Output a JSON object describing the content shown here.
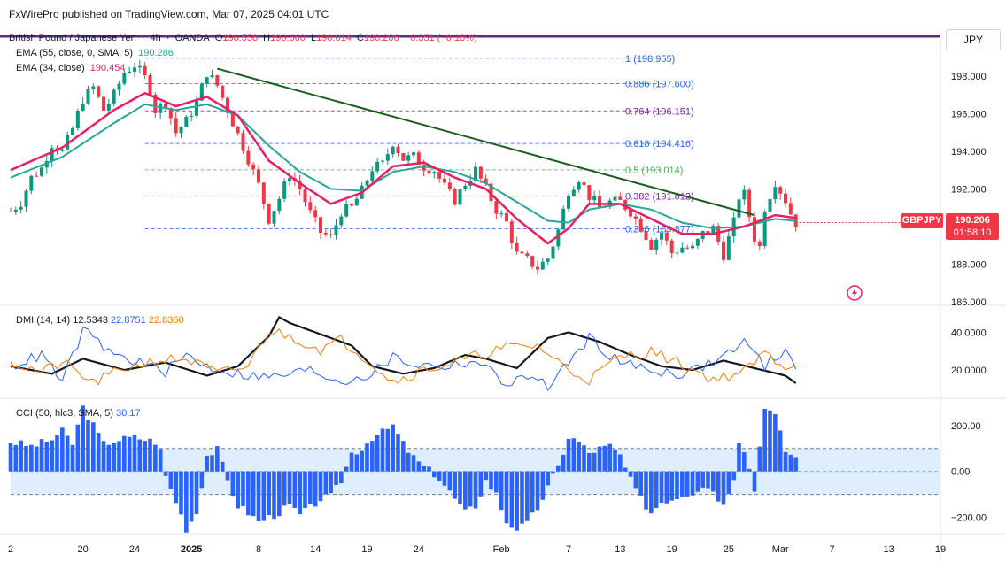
{
  "header": {
    "publisher": "FxWirePro published on TradingView.com, Mar 07, 2025 04:01 UTC"
  },
  "symbol": {
    "name": "British Pound / Japanese Yen",
    "interval": "4h",
    "exchange": "OANDA",
    "open_label": "O",
    "open": "190.558",
    "high_label": "H",
    "high": "190.660",
    "low_label": "L",
    "low": "190.014",
    "close_label": "C",
    "close": "190.206",
    "change": "−0.351 (−0.18%)",
    "ticker_tag": "GBPJPY",
    "last_price": "190.206",
    "countdown": "01:58:10",
    "currency": "JPY"
  },
  "indicators": {
    "ema55": {
      "label": "EMA (55, close, 0, SMA, 5)",
      "value": "190.286"
    },
    "ema34": {
      "label": "EMA (34, close)",
      "value": "190.454"
    },
    "dmi": {
      "label": "DMI (14, 14)",
      "adx": "12.5343",
      "plus_di": "22.8751",
      "minus_di": "22.8360"
    },
    "cci": {
      "label": "CCI (50, hlc3, SMA, 5)",
      "value": "30.17"
    }
  },
  "colors": {
    "up": "#089981",
    "down": "#f23645",
    "ema34": "#e91e63",
    "ema55": "#26a69a",
    "trend": "#1b5e20",
    "fib": "#2962ff",
    "plus_di": "#2962ff",
    "minus_di": "#f57c00",
    "adx": "#131722",
    "cci": "#2962ff",
    "bg_band": "#dfeefc"
  },
  "fib_levels": [
    {
      "ratio": "1",
      "value": 198.955,
      "label": "1 (198.955)"
    },
    {
      "ratio": "0.886",
      "value": 197.6,
      "label": "0.886 (197.600)"
    },
    {
      "ratio": "0.764",
      "value": 196.151,
      "label": "0.764 (196.151)"
    },
    {
      "ratio": "0.618",
      "value": 194.416,
      "label": "0.618 (194.416)"
    },
    {
      "ratio": "0.5",
      "value": 193.014,
      "label": "0.5 (193.014)"
    },
    {
      "ratio": "0.382",
      "value": 191.612,
      "label": "0.382 (191.612)"
    },
    {
      "ratio": "0.236",
      "value": 189.877,
      "label": "0.236 (189.877)"
    }
  ],
  "chart_data": [
    {
      "type": "candlestick",
      "ylim": [
        185.8,
        200.5
      ],
      "y_ticks": [
        "198.000",
        "196.000",
        "194.000",
        "192.000",
        "190.000",
        "188.000",
        "186.000"
      ],
      "x_ticks": [
        "2",
        "20",
        "24",
        "2025",
        "8",
        "14",
        "19",
        "24",
        "Feb",
        "7",
        "13",
        "19",
        "25",
        "Mar",
        "7",
        "13",
        "19"
      ],
      "close_path": [
        [
          0,
          190.8
        ],
        [
          2,
          191.3
        ],
        [
          4,
          192.6
        ],
        [
          6,
          193.1
        ],
        [
          8,
          194.4
        ],
        [
          10,
          194.0
        ],
        [
          12,
          195.2
        ],
        [
          14,
          196.8
        ],
        [
          16,
          197.4
        ],
        [
          18,
          196.2
        ],
        [
          20,
          197.0
        ],
        [
          22,
          198.2
        ],
        [
          24,
          198.6
        ],
        [
          26,
          197.9
        ],
        [
          27,
          197.3
        ],
        [
          28,
          196.2
        ],
        [
          30,
          196.6
        ],
        [
          32,
          195.0
        ],
        [
          34,
          195.6
        ],
        [
          36,
          196.6
        ],
        [
          38,
          198.2
        ],
        [
          40,
          197.5
        ],
        [
          42,
          196.2
        ],
        [
          44,
          194.9
        ],
        [
          46,
          193.6
        ],
        [
          48,
          192.2
        ],
        [
          50,
          190.4
        ],
        [
          52,
          191.5
        ],
        [
          54,
          192.8
        ],
        [
          56,
          192.0
        ],
        [
          58,
          190.7
        ],
        [
          60,
          189.7
        ],
        [
          62,
          189.4
        ],
        [
          64,
          190.8
        ],
        [
          66,
          191.0
        ],
        [
          68,
          191.9
        ],
        [
          70,
          193.1
        ],
        [
          72,
          193.3
        ],
        [
          74,
          194.5
        ],
        [
          76,
          193.6
        ],
        [
          78,
          193.7
        ],
        [
          80,
          193.2
        ],
        [
          82,
          193.0
        ],
        [
          84,
          192.1
        ],
        [
          86,
          191.4
        ],
        [
          88,
          192.3
        ],
        [
          90,
          193.0
        ],
        [
          92,
          192.0
        ],
        [
          94,
          190.9
        ],
        [
          96,
          190.2
        ],
        [
          98,
          188.5
        ],
        [
          100,
          188.2
        ],
        [
          102,
          187.8
        ],
        [
          104,
          188.3
        ],
        [
          106,
          189.8
        ],
        [
          108,
          191.9
        ],
        [
          110,
          192.6
        ],
        [
          112,
          191.6
        ],
        [
          114,
          191.0
        ],
        [
          116,
          191.3
        ],
        [
          118,
          191.3
        ],
        [
          120,
          190.8
        ],
        [
          122,
          190.0
        ],
        [
          124,
          189.0
        ],
        [
          126,
          189.7
        ],
        [
          128,
          188.6
        ],
        [
          130,
          188.9
        ],
        [
          132,
          188.8
        ],
        [
          134,
          189.6
        ],
        [
          136,
          189.9
        ],
        [
          138,
          188.5
        ],
        [
          140,
          190.2
        ],
        [
          141,
          191.6
        ],
        [
          142,
          191.7
        ],
        [
          144,
          189.4
        ],
        [
          145,
          188.9
        ],
        [
          146,
          191.0
        ],
        [
          148,
          192.4
        ],
        [
          150,
          191.4
        ],
        [
          151,
          190.7
        ],
        [
          152,
          190.21
        ]
      ],
      "ema34_path": [
        [
          0,
          193.0
        ],
        [
          10,
          194.2
        ],
        [
          20,
          196.2
        ],
        [
          26,
          197.1
        ],
        [
          32,
          196.4
        ],
        [
          38,
          196.9
        ],
        [
          44,
          195.9
        ],
        [
          50,
          193.5
        ],
        [
          56,
          192.3
        ],
        [
          62,
          191.2
        ],
        [
          68,
          191.8
        ],
        [
          74,
          193.2
        ],
        [
          80,
          193.4
        ],
        [
          86,
          192.6
        ],
        [
          92,
          192.0
        ],
        [
          98,
          190.4
        ],
        [
          104,
          189.1
        ],
        [
          108,
          189.9
        ],
        [
          112,
          191.2
        ],
        [
          118,
          191.2
        ],
        [
          124,
          190.4
        ],
        [
          130,
          189.6
        ],
        [
          136,
          189.6
        ],
        [
          142,
          190.0
        ],
        [
          148,
          190.6
        ],
        [
          152,
          190.45
        ]
      ],
      "ema55_path": [
        [
          0,
          192.6
        ],
        [
          10,
          193.7
        ],
        [
          20,
          195.5
        ],
        [
          26,
          196.5
        ],
        [
          32,
          196.2
        ],
        [
          38,
          196.5
        ],
        [
          44,
          195.9
        ],
        [
          50,
          194.3
        ],
        [
          56,
          192.9
        ],
        [
          62,
          192.0
        ],
        [
          68,
          191.9
        ],
        [
          74,
          192.9
        ],
        [
          80,
          193.2
        ],
        [
          86,
          192.9
        ],
        [
          92,
          192.3
        ],
        [
          98,
          191.3
        ],
        [
          104,
          190.3
        ],
        [
          108,
          190.2
        ],
        [
          112,
          190.9
        ],
        [
          118,
          191.2
        ],
        [
          124,
          190.9
        ],
        [
          130,
          190.2
        ],
        [
          136,
          189.9
        ],
        [
          142,
          190.0
        ],
        [
          148,
          190.4
        ],
        [
          152,
          190.29
        ]
      ],
      "trendline": [
        [
          40,
          198.4
        ],
        [
          144,
          190.6
        ]
      ]
    },
    {
      "type": "line",
      "ylim": [
        5,
        52
      ],
      "y_ticks": [
        "40.0000",
        "20.0000"
      ],
      "series": [
        {
          "name": "ADX",
          "values": [
            [
              0,
              22
            ],
            [
              8,
              18
            ],
            [
              14,
              26
            ],
            [
              22,
              20
            ],
            [
              30,
              24
            ],
            [
              38,
              17
            ],
            [
              44,
              22
            ],
            [
              50,
              38
            ],
            [
              52,
              48
            ],
            [
              54,
              45
            ],
            [
              60,
              39
            ],
            [
              66,
              33
            ],
            [
              70,
              22
            ],
            [
              76,
              18
            ],
            [
              82,
              21
            ],
            [
              88,
              28
            ],
            [
              92,
              26
            ],
            [
              98,
              21
            ],
            [
              104,
              37
            ],
            [
              108,
              40
            ],
            [
              114,
              35
            ],
            [
              120,
              28
            ],
            [
              126,
              22
            ],
            [
              132,
              20
            ],
            [
              138,
              25
            ],
            [
              144,
              21
            ],
            [
              150,
              17
            ],
            [
              152,
              13
            ]
          ]
        },
        {
          "name": "+DI",
          "values": [
            [
              0,
              22
            ],
            [
              6,
              28
            ],
            [
              10,
              14
            ],
            [
              14,
              41
            ],
            [
              20,
              28
            ],
            [
              26,
              23
            ],
            [
              30,
              19
            ],
            [
              34,
              28
            ],
            [
              38,
              22
            ],
            [
              44,
              18
            ],
            [
              50,
              16
            ],
            [
              58,
              20
            ],
            [
              64,
              14
            ],
            [
              70,
              18
            ],
            [
              74,
              27
            ],
            [
              78,
              23
            ],
            [
              84,
              22
            ],
            [
              90,
              25
            ],
            [
              96,
              13
            ],
            [
              102,
              17
            ],
            [
              104,
              10
            ],
            [
              108,
              24
            ],
            [
              112,
              37
            ],
            [
              118,
              24
            ],
            [
              124,
              20
            ],
            [
              130,
              18
            ],
            [
              136,
              24
            ],
            [
              142,
              35
            ],
            [
              146,
              22
            ],
            [
              150,
              31
            ],
            [
              152,
              23
            ]
          ]
        },
        {
          "name": "−DI",
          "values": [
            [
              0,
              24
            ],
            [
              6,
              19
            ],
            [
              10,
              24
            ],
            [
              16,
              13
            ],
            [
              22,
              21
            ],
            [
              28,
              25
            ],
            [
              34,
              26
            ],
            [
              40,
              18
            ],
            [
              46,
              22
            ],
            [
              50,
              41
            ],
            [
              54,
              38
            ],
            [
              60,
              31
            ],
            [
              64,
              36
            ],
            [
              68,
              28
            ],
            [
              74,
              14
            ],
            [
              80,
              20
            ],
            [
              86,
              24
            ],
            [
              92,
              29
            ],
            [
              96,
              32
            ],
            [
              102,
              33
            ],
            [
              108,
              20
            ],
            [
              112,
              15
            ],
            [
              118,
              27
            ],
            [
              124,
              30
            ],
            [
              130,
              23
            ],
            [
              136,
              15
            ],
            [
              142,
              19
            ],
            [
              146,
              29
            ],
            [
              150,
              22
            ],
            [
              152,
              23
            ]
          ]
        }
      ]
    },
    {
      "type": "bar",
      "ylim": [
        -260,
        300
      ],
      "y_ticks": [
        "200.00",
        "0.00",
        "−200.00"
      ],
      "values": [
        [
          0,
          130
        ],
        [
          4,
          110
        ],
        [
          8,
          140
        ],
        [
          10,
          175
        ],
        [
          12,
          120
        ],
        [
          14,
          280
        ],
        [
          16,
          200
        ],
        [
          18,
          120
        ],
        [
          20,
          135
        ],
        [
          24,
          150
        ],
        [
          28,
          130
        ],
        [
          29,
          90
        ],
        [
          30,
          -20
        ],
        [
          32,
          -130
        ],
        [
          34,
          -250
        ],
        [
          36,
          -180
        ],
        [
          38,
          70
        ],
        [
          40,
          95
        ],
        [
          42,
          -40
        ],
        [
          44,
          -150
        ],
        [
          46,
          -180
        ],
        [
          48,
          -220
        ],
        [
          50,
          -200
        ],
        [
          52,
          -180
        ],
        [
          54,
          -150
        ],
        [
          56,
          -190
        ],
        [
          58,
          -160
        ],
        [
          60,
          -120
        ],
        [
          62,
          -110
        ],
        [
          64,
          -40
        ],
        [
          66,
          80
        ],
        [
          68,
          100
        ],
        [
          70,
          150
        ],
        [
          72,
          170
        ],
        [
          74,
          200
        ],
        [
          76,
          120
        ],
        [
          78,
          60
        ],
        [
          80,
          20
        ],
        [
          82,
          -10
        ],
        [
          84,
          -60
        ],
        [
          86,
          -120
        ],
        [
          88,
          -180
        ],
        [
          90,
          -150
        ],
        [
          92,
          -40
        ],
        [
          94,
          -100
        ],
        [
          96,
          -220
        ],
        [
          98,
          -250
        ],
        [
          100,
          -230
        ],
        [
          102,
          -160
        ],
        [
          104,
          -70
        ],
        [
          106,
          20
        ],
        [
          108,
          150
        ],
        [
          110,
          130
        ],
        [
          112,
          80
        ],
        [
          114,
          100
        ],
        [
          116,
          110
        ],
        [
          118,
          70
        ],
        [
          120,
          -40
        ],
        [
          122,
          -120
        ],
        [
          124,
          -180
        ],
        [
          126,
          -130
        ],
        [
          128,
          -120
        ],
        [
          130,
          -100
        ],
        [
          132,
          -90
        ],
        [
          134,
          -60
        ],
        [
          136,
          -80
        ],
        [
          138,
          -150
        ],
        [
          140,
          -20
        ],
        [
          141,
          140
        ],
        [
          142,
          100
        ],
        [
          144,
          -80
        ],
        [
          145,
          110
        ],
        [
          146,
          290
        ],
        [
          148,
          240
        ],
        [
          150,
          90
        ],
        [
          152,
          60
        ]
      ]
    }
  ]
}
